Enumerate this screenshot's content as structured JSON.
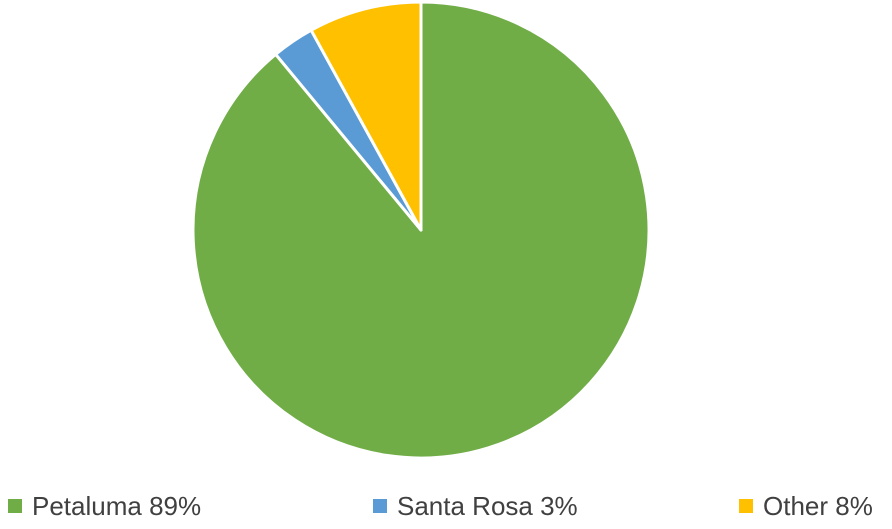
{
  "chart_data": {
    "type": "pie",
    "title": "",
    "start_angle": "12 o'clock",
    "direction": "clockwise",
    "slices": [
      {
        "label": "Petaluma",
        "value": 89,
        "color": "#70AD47",
        "legend_text": "Petaluma 89%"
      },
      {
        "label": "Santa Rosa",
        "value": 3,
        "color": "#5B9BD5",
        "legend_text": "Santa Rosa 3%"
      },
      {
        "label": "Other",
        "value": 8,
        "color": "#FFC000",
        "legend_text": "Other 8%"
      }
    ],
    "legend_position": "bottom"
  }
}
